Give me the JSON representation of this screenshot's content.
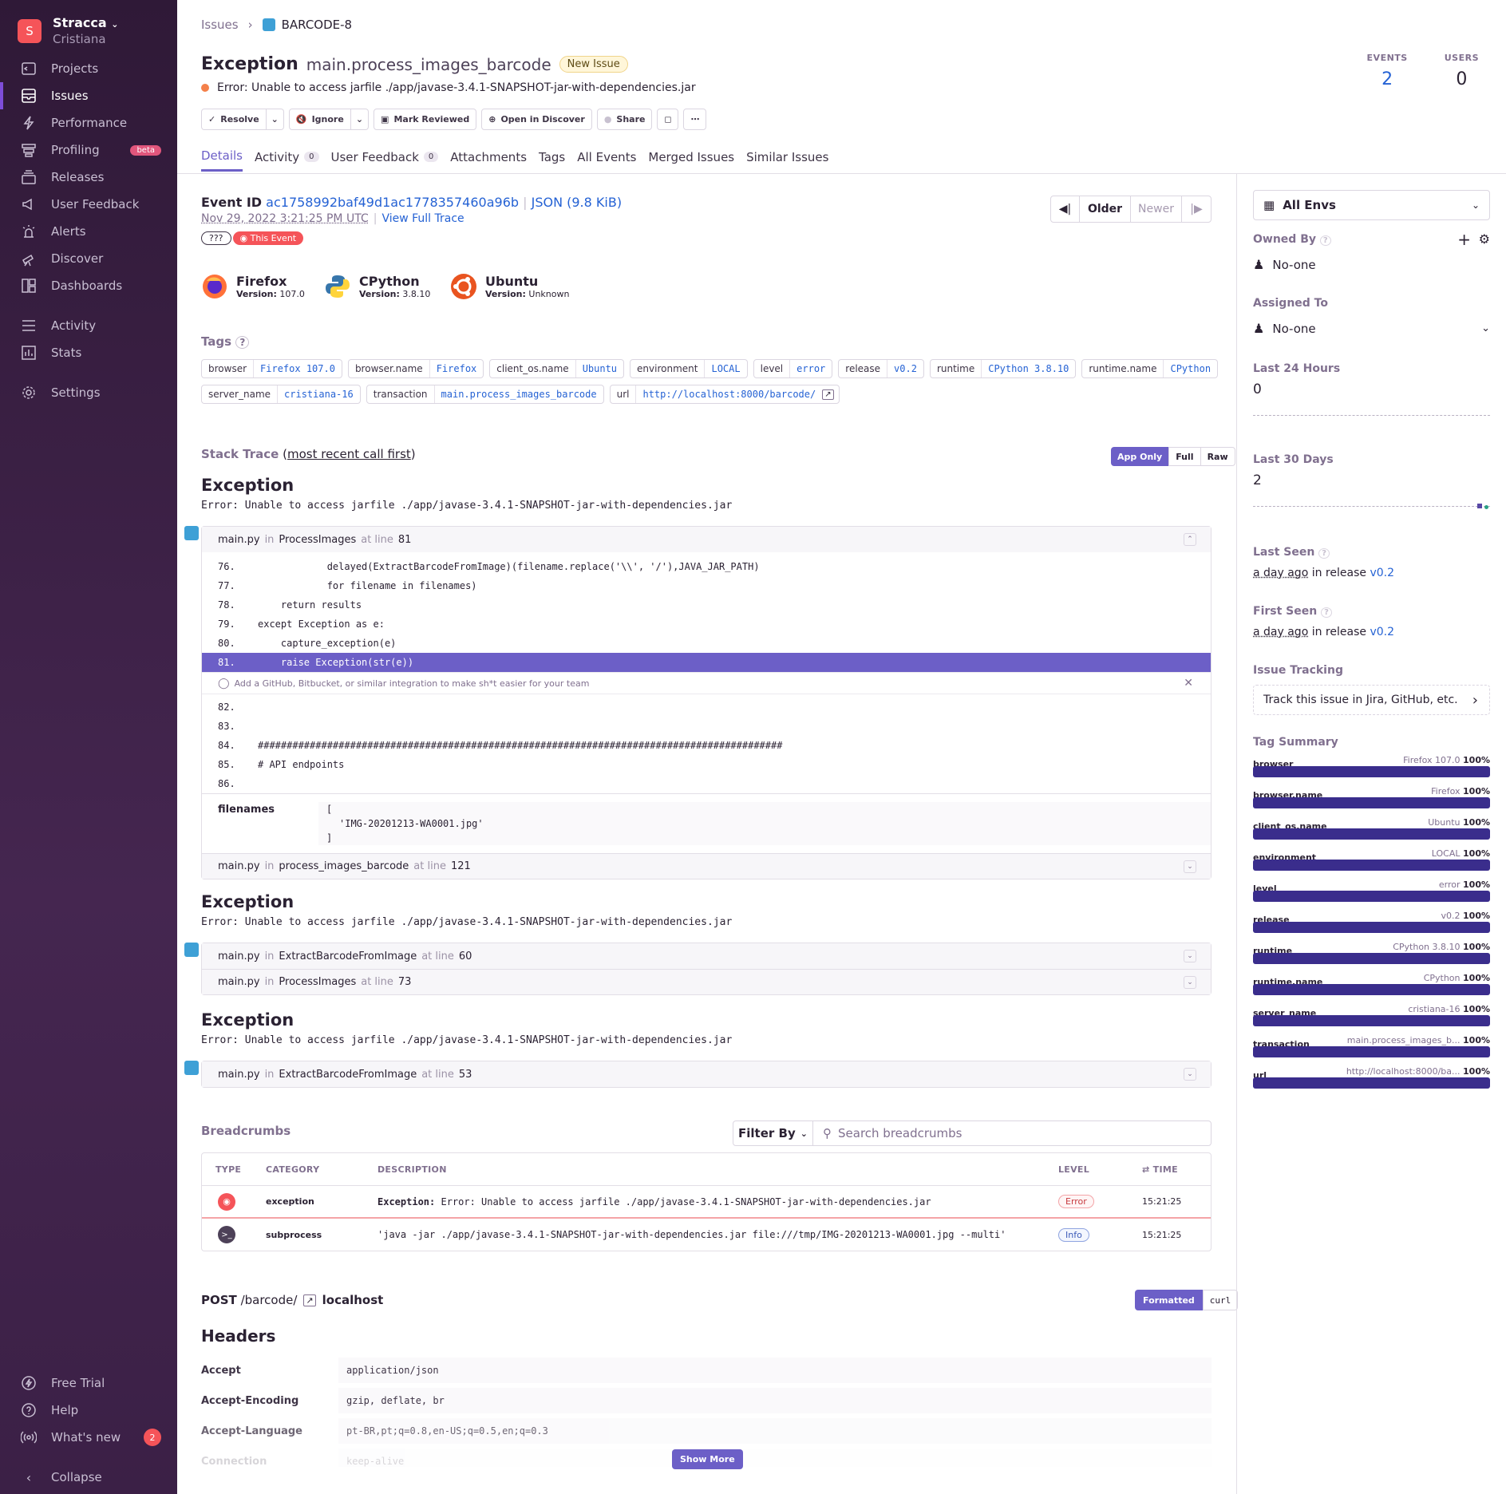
{
  "sidebar": {
    "org_initial": "S",
    "org_name": "Stracca",
    "org_user": "Cristiana",
    "items": [
      {
        "label": "Projects"
      },
      {
        "label": "Issues"
      },
      {
        "label": "Performance"
      },
      {
        "label": "Profiling",
        "badge": "beta"
      },
      {
        "label": "Releases"
      },
      {
        "label": "User Feedback"
      },
      {
        "label": "Alerts"
      },
      {
        "label": "Discover"
      },
      {
        "label": "Dashboards"
      },
      {
        "label": "Activity"
      },
      {
        "label": "Stats"
      },
      {
        "label": "Settings"
      }
    ],
    "bottom": [
      {
        "label": "Free Trial"
      },
      {
        "label": "Help"
      },
      {
        "label": "What's new",
        "badge": "2"
      },
      {
        "label": "Collapse"
      }
    ]
  },
  "breadcrumb": {
    "root": "Issues",
    "current": "BARCODE-8"
  },
  "issue": {
    "type": "Exception",
    "culprit": "main.process_images_barcode",
    "status_badge": "New Issue",
    "message": "Error: Unable to access jarfile ./app/javase-3.4.1-SNAPSHOT-jar-with-dependencies.jar"
  },
  "stats": {
    "events_label": "EVENTS",
    "events_value": "2",
    "users_label": "USERS",
    "users_value": "0"
  },
  "actions": {
    "resolve": "Resolve",
    "ignore": "Ignore",
    "mark_reviewed": "Mark Reviewed",
    "open_discover": "Open in Discover",
    "share": "Share"
  },
  "tabs": [
    {
      "label": "Details"
    },
    {
      "label": "Activity",
      "count": "0"
    },
    {
      "label": "User Feedback",
      "count": "0"
    },
    {
      "label": "Attachments"
    },
    {
      "label": "Tags"
    },
    {
      "label": "All Events"
    },
    {
      "label": "Merged Issues"
    },
    {
      "label": "Similar Issues"
    }
  ],
  "event": {
    "id_label": "Event ID",
    "id": "ac1758992baf49d1ac1778357460a96b",
    "json_link": "JSON (9.8 KiB)",
    "date": "Nov 29, 2022 3:21:25 PM UTC",
    "view_trace": "View Full Trace",
    "unknown_badge": "???",
    "this_event": "This Event",
    "older": "Older",
    "newer": "Newer"
  },
  "contexts": [
    {
      "name": "Firefox",
      "version_label": "Version:",
      "version": "107.0"
    },
    {
      "name": "CPython",
      "version_label": "Version:",
      "version": "3.8.10"
    },
    {
      "name": "Ubuntu",
      "version_label": "Version:",
      "version": "Unknown"
    }
  ],
  "tags_title": "Tags",
  "tags": [
    {
      "k": "browser",
      "v": "Firefox 107.0"
    },
    {
      "k": "browser.name",
      "v": "Firefox"
    },
    {
      "k": "client_os.name",
      "v": "Ubuntu"
    },
    {
      "k": "environment",
      "v": "LOCAL"
    },
    {
      "k": "level",
      "v": "error"
    },
    {
      "k": "release",
      "v": "v0.2"
    },
    {
      "k": "runtime",
      "v": "CPython 3.8.10"
    },
    {
      "k": "runtime.name",
      "v": "CPython"
    },
    {
      "k": "server_name",
      "v": "cristiana-16"
    },
    {
      "k": "transaction",
      "v": "main.process_images_barcode"
    },
    {
      "k": "url",
      "v": "http://localhost:8000/barcode/"
    }
  ],
  "stacktrace": {
    "title": "Stack Trace",
    "subtitle": "most recent call first",
    "modes": [
      "App Only",
      "Full",
      "Raw"
    ],
    "ex_title": "Exception",
    "ex_msg": "Error: Unable to access jarfile ./app/javase-3.4.1-SNAPSHOT-jar-with-dependencies.jar",
    "frame1": {
      "file": "main.py",
      "in": "in",
      "func": "ProcessImages",
      "at": "at line",
      "line": "81"
    },
    "code": [
      {
        "n": "76.",
        "c": "            delayed(ExtractBarcodeFromImage)(filename.replace('\\\\', '/'),JAVA_JAR_PATH)"
      },
      {
        "n": "77.",
        "c": "            for filename in filenames)"
      },
      {
        "n": "78.",
        "c": "    return results"
      },
      {
        "n": "79.",
        "c": "except Exception as e:"
      },
      {
        "n": "80.",
        "c": "    capture_exception(e)"
      },
      {
        "n": "81.",
        "c": "    raise Exception(str(e))"
      }
    ],
    "integration_hint": "Add a GitHub, Bitbucket, or similar integration to make sh*t easier for your team",
    "code2": [
      {
        "n": "82.",
        "c": ""
      },
      {
        "n": "83.",
        "c": ""
      },
      {
        "n": "84.",
        "c": "###########################################################################################"
      },
      {
        "n": "85.",
        "c": "# API endpoints"
      },
      {
        "n": "86.",
        "c": ""
      }
    ],
    "var_name": "filenames",
    "var_open": "[",
    "var_item": "'IMG-20201213-WA0001.jpg'",
    "var_close": "]",
    "frame2": {
      "file": "main.py",
      "in": "in",
      "func": "process_images_barcode",
      "at": "at line",
      "line": "121"
    },
    "frame3": {
      "file": "main.py",
      "in": "in",
      "func": "ExtractBarcodeFromImage",
      "at": "at line",
      "line": "60"
    },
    "frame4": {
      "file": "main.py",
      "in": "in",
      "func": "ProcessImages",
      "at": "at line",
      "line": "73"
    },
    "frame5": {
      "file": "main.py",
      "in": "in",
      "func": "ExtractBarcodeFromImage",
      "at": "at line",
      "line": "53"
    }
  },
  "breadcrumbs": {
    "title": "Breadcrumbs",
    "filter": "Filter By",
    "search_placeholder": "Search breadcrumbs",
    "cols": {
      "type": "TYPE",
      "category": "CATEGORY",
      "description": "DESCRIPTION",
      "level": "LEVEL",
      "time": "TIME"
    },
    "rows": [
      {
        "category": "exception",
        "desc_prefix": "Exception:",
        "desc": " Error: Unable to access jarfile ./app/javase-3.4.1-SNAPSHOT-jar-with-dependencies.jar",
        "level": "Error",
        "time": "15:21:25"
      },
      {
        "category": "subprocess",
        "desc_prefix": "",
        "desc": "'java -jar ./app/javase-3.4.1-SNAPSHOT-jar-with-dependencies.jar  file:///tmp/IMG-20201213-WA0001.jpg --multi'",
        "level": "Info",
        "time": "15:21:25"
      }
    ]
  },
  "request": {
    "method": "POST",
    "path": "/barcode/",
    "host": "localhost",
    "formatted": "Formatted",
    "curl": "curl",
    "headers_title": "Headers",
    "headers": [
      {
        "k": "Accept",
        "v": "application/json"
      },
      {
        "k": "Accept-Encoding",
        "v": "gzip, deflate, br"
      },
      {
        "k": "Accept-Language",
        "v": "pt-BR,pt;q=0.8,en-US;q=0.5,en;q=0.3"
      },
      {
        "k": "Connection",
        "v": "keep-alive"
      }
    ],
    "show_more": "Show More"
  },
  "side": {
    "env": "All Envs",
    "owned_by": "Owned By",
    "owner": "No-one",
    "assigned_to": "Assigned To",
    "assignee": "No-one",
    "last24": "Last 24 Hours",
    "last24_val": "0",
    "last30": "Last 30 Days",
    "last30_val": "2",
    "last_seen": "Last Seen",
    "last_seen_val": "a day ago",
    "first_seen": "First Seen",
    "first_seen_val": "a day ago",
    "in_release": "in release",
    "release": "v0.2",
    "issue_tracking": "Issue Tracking",
    "track_btn": "Track this issue in Jira, GitHub, etc.",
    "tag_summary": "Tag Summary",
    "tag_summary_rows": [
      {
        "k": "browser",
        "v": "Firefox 107.0",
        "p": "100%"
      },
      {
        "k": "browser.name",
        "v": "Firefox",
        "p": "100%"
      },
      {
        "k": "client_os.name",
        "v": "Ubuntu",
        "p": "100%"
      },
      {
        "k": "environment",
        "v": "LOCAL",
        "p": "100%"
      },
      {
        "k": "level",
        "v": "error",
        "p": "100%"
      },
      {
        "k": "release",
        "v": "v0.2",
        "p": "100%"
      },
      {
        "k": "runtime",
        "v": "CPython 3.8.10",
        "p": "100%"
      },
      {
        "k": "runtime.name",
        "v": "CPython",
        "p": "100%"
      },
      {
        "k": "server_name",
        "v": "cristiana-16",
        "p": "100%"
      },
      {
        "k": "transaction",
        "v": "main.process_images_b...",
        "p": "100%"
      },
      {
        "k": "url",
        "v": "http://localhost:8000/ba...",
        "p": "100%"
      }
    ]
  }
}
